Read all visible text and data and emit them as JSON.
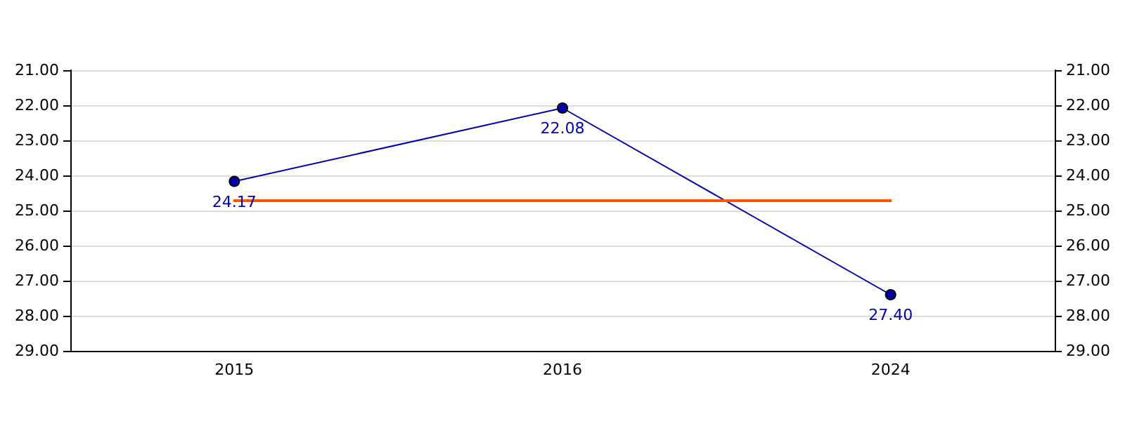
{
  "chart_data": {
    "type": "line",
    "categories": [
      "2015",
      "2016",
      "2024"
    ],
    "series": [
      {
        "color": "#0000aa",
        "values": [
          24.17,
          22.08,
          27.4
        ],
        "marker": "circle",
        "value_labels": [
          "24.17",
          "22.08",
          "27.40"
        ]
      },
      {
        "color": "#ff5500",
        "values": [
          24.72,
          24.72,
          24.72
        ],
        "marker": "none"
      }
    ],
    "ylim": [
      29,
      21
    ],
    "yticks": [
      {
        "value": 21,
        "label": "21.00"
      },
      {
        "value": 22,
        "label": "22.00"
      },
      {
        "value": 23,
        "label": "23.00"
      },
      {
        "value": 24,
        "label": "24.00"
      },
      {
        "value": 25,
        "label": "25.00"
      },
      {
        "value": 26,
        "label": "26.00"
      },
      {
        "value": 27,
        "label": "27.00"
      },
      {
        "value": 28,
        "label": "28.00"
      },
      {
        "value": 29,
        "label": "29.00"
      }
    ],
    "y2lim": [
      29,
      21
    ],
    "y2ticks": [
      {
        "value": 21,
        "label": "21.00"
      },
      {
        "value": 22,
        "label": "22.00"
      },
      {
        "value": 23,
        "label": "23.00"
      },
      {
        "value": 24,
        "label": "24.00"
      },
      {
        "value": 25,
        "label": "25.00"
      },
      {
        "value": 26,
        "label": "26.00"
      },
      {
        "value": 27,
        "label": "27.00"
      },
      {
        "value": 28,
        "label": "28.00"
      },
      {
        "value": 29,
        "label": "29.00"
      }
    ],
    "grid": "y"
  }
}
